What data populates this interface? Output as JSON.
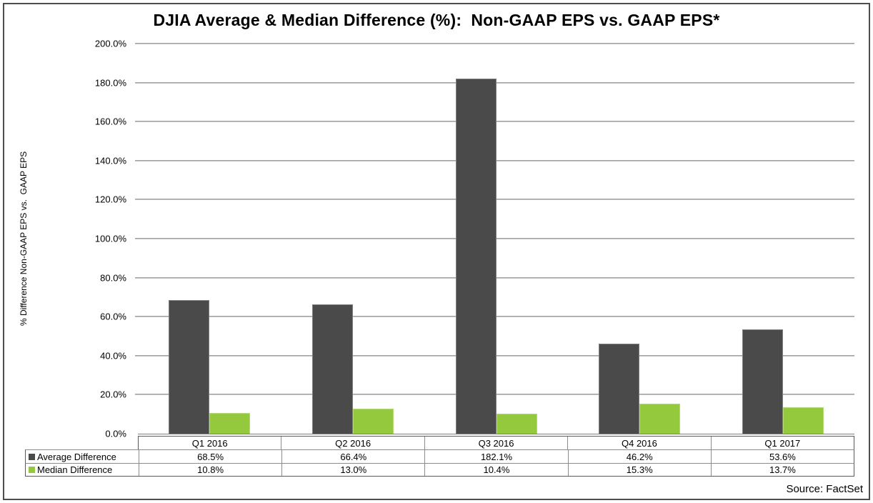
{
  "figure": {
    "title": "DJIA Average & Median Difference (%):  Non-GAAP EPS vs. GAAP EPS*",
    "source": "Source: FactSet"
  },
  "chart_data": {
    "type": "bar",
    "title": "DJIA Average & Median Difference (%): Non-GAAP EPS vs. GAAP EPS*",
    "categories": [
      "Q1 2016",
      "Q2 2016",
      "Q3 2016",
      "Q4 2016",
      "Q1 2017"
    ],
    "series": [
      {
        "name": "Average Difference",
        "color": "#4A4A4A",
        "values": [
          68.5,
          66.4,
          182.1,
          46.2,
          53.6
        ],
        "value_labels": [
          "68.5%",
          "66.4%",
          "182.1%",
          "46.2%",
          "53.6%"
        ]
      },
      {
        "name": "Median Difference",
        "color": "#95C93D",
        "values": [
          10.8,
          13.0,
          10.4,
          15.3,
          13.7
        ],
        "value_labels": [
          "10.8%",
          "13.0%",
          "10.4%",
          "15.3%",
          "13.7%"
        ]
      }
    ],
    "xlabel": "",
    "ylabel": "% Difference Non-GAAP EPS vs.  GAAP EPS",
    "ylim": [
      0,
      200
    ],
    "ytick_step": 20,
    "ytick_labels": [
      "0.0%",
      "20.0%",
      "40.0%",
      "60.0%",
      "80.0%",
      "100.0%",
      "120.0%",
      "140.0%",
      "160.0%",
      "180.0%",
      "200.0%"
    ],
    "grid": true,
    "gridline_color": "#A6A6A6",
    "legend_position": "left column of data table",
    "data_table_shown": true
  }
}
